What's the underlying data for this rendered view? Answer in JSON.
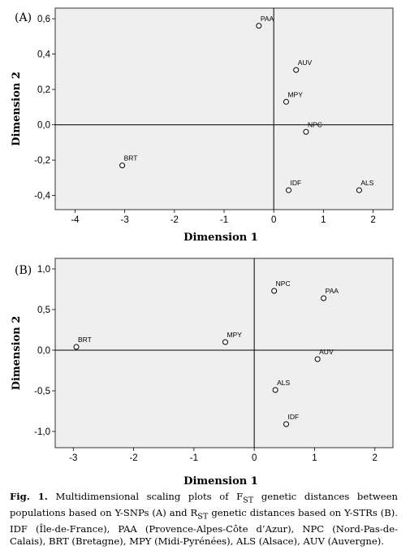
{
  "chart_data": [
    {
      "type": "scatter",
      "panel_label": "(A)",
      "xlabel": "Dimension 1",
      "ylabel": "Dimension 2",
      "xlim": [
        -4.4,
        2.4
      ],
      "ylim": [
        -0.48,
        0.66
      ],
      "xticks": [
        -4,
        -3,
        -2,
        -1,
        0,
        1,
        2
      ],
      "yticks": [
        0.6,
        0.4,
        0.2,
        0.0,
        -0.2,
        -0.4
      ],
      "ytick_labels": [
        "0,6",
        "0,4",
        "0,2",
        "0,0",
        "-0,2",
        "-0,4"
      ],
      "xtick_labels": [
        "-4",
        "-3",
        "-2",
        "-1",
        "0",
        "1",
        "2"
      ],
      "points": [
        {
          "label": "PAA",
          "x": -0.3,
          "y": 0.56
        },
        {
          "label": "AUV",
          "x": 0.45,
          "y": 0.31
        },
        {
          "label": "MPY",
          "x": 0.25,
          "y": 0.13
        },
        {
          "label": "NPC",
          "x": 0.65,
          "y": -0.04
        },
        {
          "label": "BRT",
          "x": -3.05,
          "y": -0.23
        },
        {
          "label": "IDF",
          "x": 0.3,
          "y": -0.37
        },
        {
          "label": "ALS",
          "x": 1.72,
          "y": -0.37
        }
      ]
    },
    {
      "type": "scatter",
      "panel_label": "(B)",
      "xlabel": "Dimension 1",
      "ylabel": "Dimension 2",
      "xlim": [
        -3.3,
        2.3
      ],
      "ylim": [
        -1.2,
        1.13
      ],
      "xticks": [
        -3,
        -2,
        -1,
        0,
        1,
        2
      ],
      "yticks": [
        1.0,
        0.5,
        0.0,
        -0.5,
        -1.0
      ],
      "ytick_labels": [
        "1,0",
        "0,5",
        "0,0",
        "-0,5",
        "-1,0"
      ],
      "xtick_labels": [
        "-3",
        "-2",
        "-1",
        "0",
        "1",
        "2"
      ],
      "points": [
        {
          "label": "NPC",
          "x": 0.33,
          "y": 0.73
        },
        {
          "label": "PAA",
          "x": 1.15,
          "y": 0.64
        },
        {
          "label": "BRT",
          "x": -2.95,
          "y": 0.04
        },
        {
          "label": "MPY",
          "x": -0.48,
          "y": 0.1
        },
        {
          "label": "AUV",
          "x": 1.05,
          "y": -0.11
        },
        {
          "label": "ALS",
          "x": 0.35,
          "y": -0.49
        },
        {
          "label": "IDF",
          "x": 0.53,
          "y": -0.91
        }
      ]
    }
  ],
  "caption": {
    "fig_label": "Fig. 1.",
    "text": " Multidimensional scaling plots of F",
    "text_sub1": "ST",
    "text2": " genetic distances between populations based on Y-SNPs (A) and R",
    "text_sub2": "ST",
    "text3": " genetic distances based on Y-STRs (B). IDF (Île-de-France), PAA (Provence-Alpes-Côte d’Azur), NPC (Nord-Pas-de-Calais), BRT (Bretagne), MPY (Midi-Pyrénées), ALS (Alsace), AUV (Auvergne)."
  }
}
